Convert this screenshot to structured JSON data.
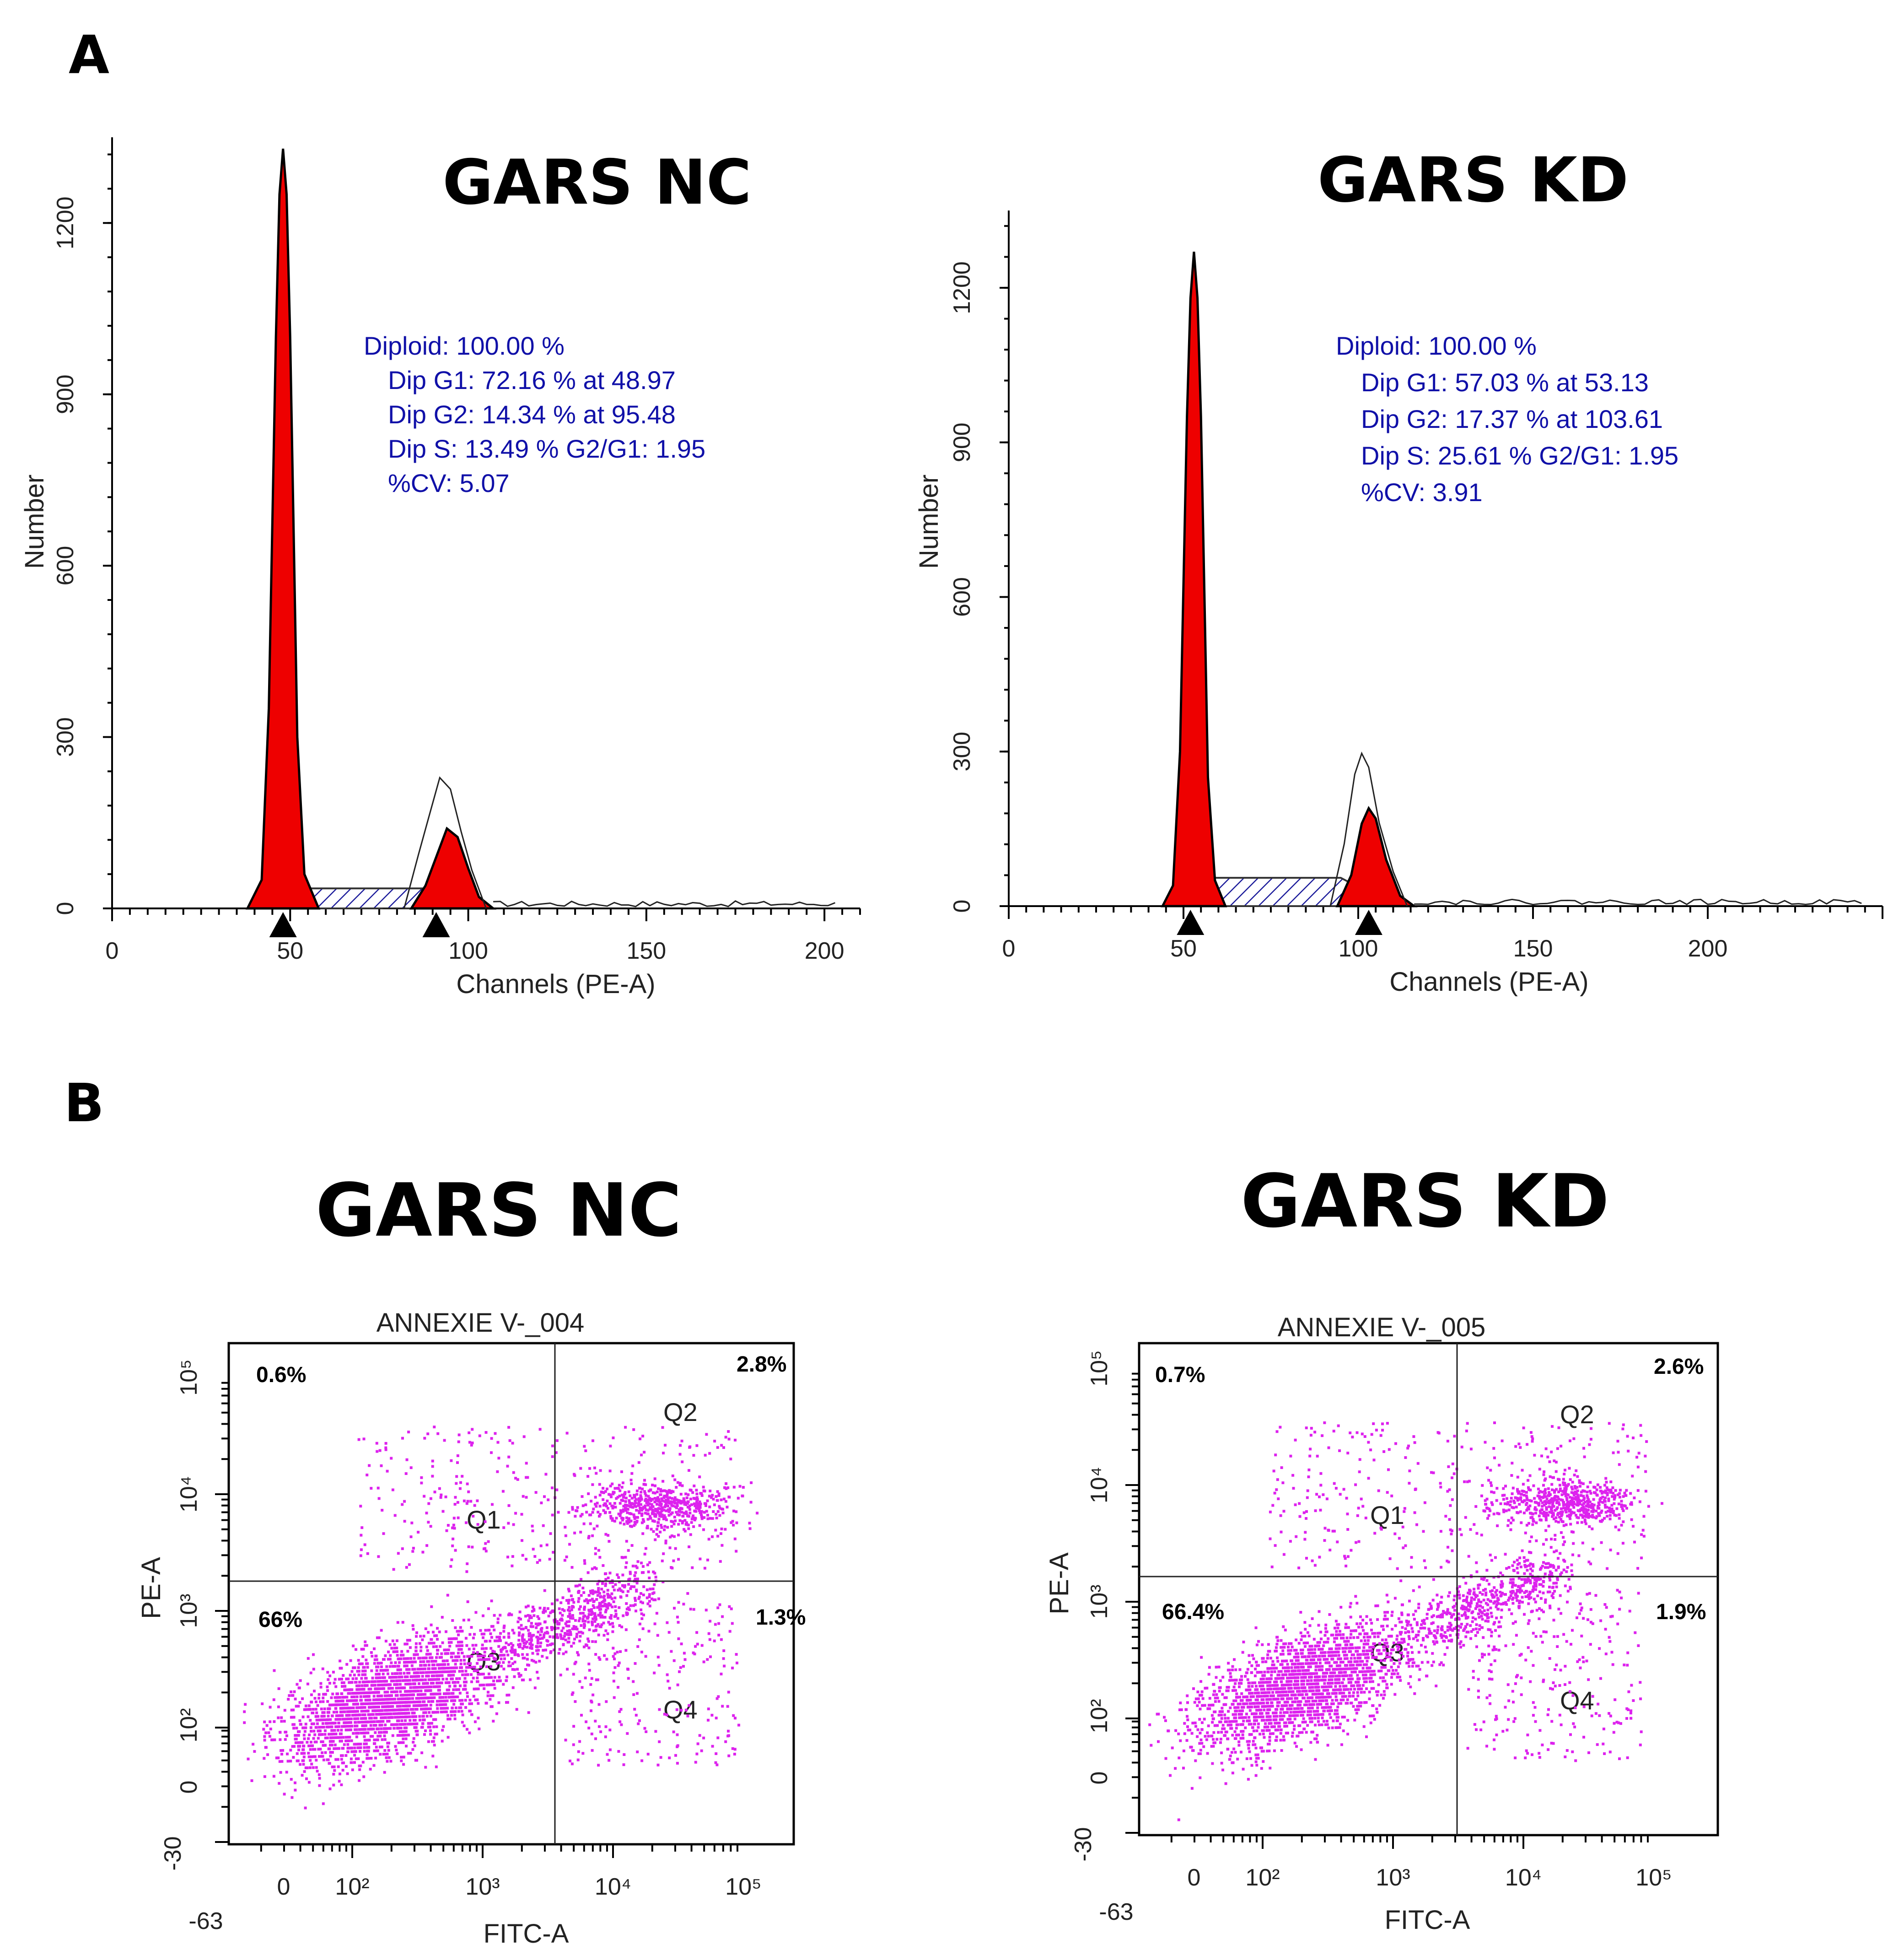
{
  "panel_labels": [
    "A",
    "B"
  ],
  "chart_data": [
    {
      "type": "area",
      "panel": "A",
      "title": "GARS NC",
      "xlabel": "Channels (PE-A)",
      "ylabel": "Number",
      "xlim": [
        0,
        210
      ],
      "ylim": [
        0,
        1350
      ],
      "xticks": [
        0,
        50,
        100,
        150,
        200
      ],
      "yticks": [
        0,
        300,
        600,
        900,
        1200
      ],
      "stats": [
        "Diploid: 100.00 %",
        "Dip G1: 72.16 % at 48.97",
        "Dip G2: 14.34 % at 95.48",
        "Dip S: 13.49 %   G2/G1: 1.95",
        "%CV: 5.07"
      ],
      "markers": [
        48,
        91
      ],
      "series": [
        {
          "name": "G1 peak",
          "x": [
            38,
            42,
            44,
            46,
            47,
            48,
            49,
            50,
            52,
            54,
            58
          ],
          "values": [
            0,
            50,
            350,
            1000,
            1250,
            1330,
            1250,
            1000,
            300,
            60,
            0
          ]
        },
        {
          "name": "G2 peak",
          "x": [
            84,
            88,
            91,
            94,
            97,
            100,
            103,
            107
          ],
          "values": [
            0,
            40,
            90,
            140,
            125,
            70,
            20,
            0
          ]
        },
        {
          "name": "S phase",
          "x": [
            48,
            55,
            60,
            70,
            80,
            88,
            95,
            100
          ],
          "values": [
            0,
            35,
            35,
            35,
            35,
            35,
            20,
            0
          ]
        }
      ]
    },
    {
      "type": "area",
      "panel": "A",
      "title": "GARS KD",
      "xlabel": "Channels (PE-A)",
      "ylabel": "Number",
      "xlim": [
        0,
        250
      ],
      "ylim": [
        0,
        1350
      ],
      "xticks": [
        0,
        50,
        100,
        150,
        200
      ],
      "yticks": [
        0,
        300,
        600,
        900,
        1200
      ],
      "stats": [
        "Diploid: 100.00 %",
        "Dip G1: 57.03 % at 53.13",
        "Dip G2: 17.37 % at 103.61",
        "Dip S: 25.61 %   G2/G1: 1.95",
        "%CV: 3.91"
      ],
      "markers": [
        52,
        103
      ],
      "series": [
        {
          "name": "G1 peak",
          "x": [
            44,
            47,
            49,
            51,
            52,
            53,
            54,
            55,
            57,
            59,
            62
          ],
          "values": [
            0,
            40,
            300,
            950,
            1180,
            1270,
            1180,
            950,
            250,
            50,
            0
          ]
        },
        {
          "name": "G2 peak",
          "x": [
            94,
            98,
            101,
            103,
            105,
            108,
            112,
            116
          ],
          "values": [
            0,
            60,
            160,
            190,
            170,
            90,
            20,
            0
          ]
        },
        {
          "name": "S phase",
          "x": [
            52,
            58,
            65,
            75,
            85,
            95,
            102,
            108
          ],
          "values": [
            0,
            55,
            55,
            55,
            55,
            55,
            30,
            0
          ]
        }
      ]
    },
    {
      "type": "scatter",
      "panel": "B",
      "title": "GARS NC",
      "sample": "ANNEXIE V-_004",
      "xlabel": "FITC-A",
      "ylabel": "PE-A",
      "xticks": [
        "-63",
        "0",
        "10²",
        "10³",
        "10⁴",
        "10⁵"
      ],
      "yticks": [
        "-30",
        "0",
        "10²",
        "10³",
        "10⁴",
        "10⁵"
      ],
      "quadrants": [
        {
          "name": "Q1",
          "value": "0.6%"
        },
        {
          "name": "Q2",
          "value": "2.8%"
        },
        {
          "name": "Q3",
          "value": "66%"
        },
        {
          "name": "Q4",
          "value": "1.3%"
        }
      ]
    },
    {
      "type": "scatter",
      "panel": "B",
      "title": "GARS KD",
      "sample": "ANNEXIE V-_005",
      "xlabel": "FITC-A",
      "ylabel": "PE-A",
      "xticks": [
        "-63",
        "0",
        "10²",
        "10³",
        "10⁴",
        "10⁵"
      ],
      "yticks": [
        "-30",
        "0",
        "10²",
        "10³",
        "10⁴",
        "10⁵"
      ],
      "quadrants": [
        {
          "name": "Q1",
          "value": "0.7%"
        },
        {
          "name": "Q2",
          "value": "2.6%"
        },
        {
          "name": "Q3",
          "value": "66.4%"
        },
        {
          "name": "Q4",
          "value": "1.9%"
        }
      ]
    }
  ],
  "colors": {
    "fill": "#ee0000",
    "dots": "#dd22ee",
    "stats": "#1010a8"
  }
}
